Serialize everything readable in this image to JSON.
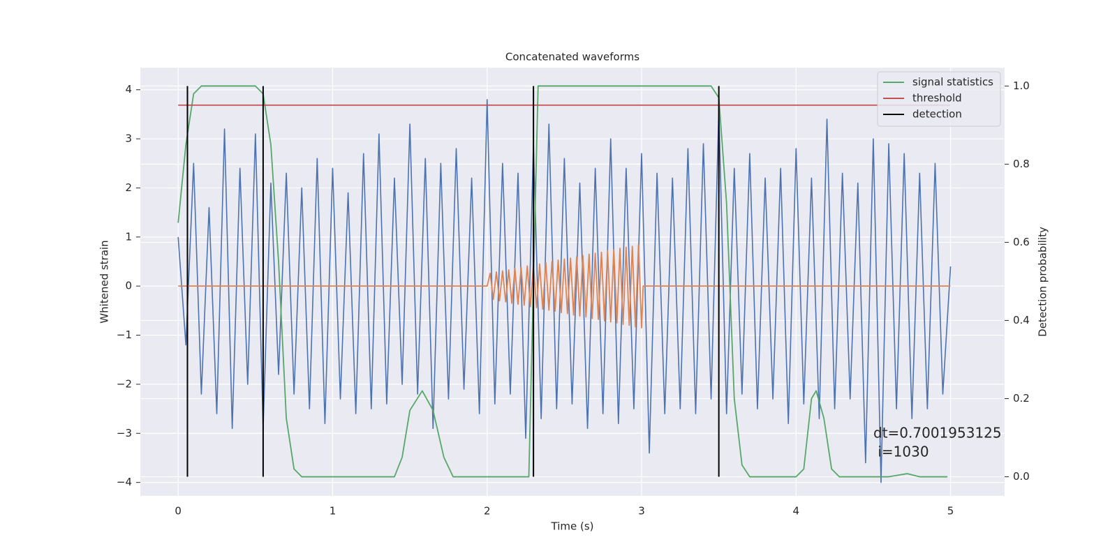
{
  "chart_data": {
    "type": "line",
    "title": "Concatenated waveforms",
    "x_label": "Time (s)",
    "y_label": "Whitened strain",
    "y2_label": "Detection probability",
    "xlim": [
      -0.245,
      5.35
    ],
    "ylim": [
      -4.275,
      4.45
    ],
    "y2lim": [
      -0.049,
      1.047
    ],
    "xticks": [
      0,
      1,
      2,
      3,
      4,
      5
    ],
    "yticks": [
      {
        "value": -4,
        "label": "−4"
      },
      {
        "value": -3,
        "label": "−3"
      },
      {
        "value": -2,
        "label": "−2"
      },
      {
        "value": -1,
        "label": "−1"
      },
      0,
      1,
      2,
      3,
      4
    ],
    "y2ticks": [
      {
        "value": 0,
        "label": "0.0"
      },
      0.2,
      0.4,
      0.6,
      0.8,
      {
        "value": 1,
        "label": "1.0"
      }
    ],
    "grid": true,
    "legend": "upper right",
    "annotation": [
      "dt=0.7001953125",
      " i=1030"
    ],
    "series": [
      {
        "color": "#4c72b0",
        "axis": "y",
        "style": "line",
        "x": [
          0,
          0.05,
          0.1,
          0.15,
          0.2,
          0.25,
          0.3,
          0.35,
          0.4,
          0.45,
          0.5,
          0.55,
          0.6,
          0.65,
          0.7,
          0.75,
          0.8,
          0.85,
          0.9,
          0.95,
          1,
          1.05,
          1.1,
          1.15,
          1.2,
          1.25,
          1.3,
          1.35,
          1.4,
          1.45,
          1.5,
          1.55,
          1.6,
          1.65,
          1.7,
          1.75,
          1.8,
          1.85,
          1.9,
          1.95,
          2,
          2.05,
          2.1,
          2.15,
          2.2,
          2.25,
          2.3,
          2.35,
          2.4,
          2.45,
          2.5,
          2.55,
          2.6,
          2.65,
          2.7,
          2.75,
          2.8,
          2.85,
          2.9,
          2.95,
          3,
          3.05,
          3.1,
          3.15,
          3.2,
          3.25,
          3.3,
          3.35,
          3.4,
          3.45,
          3.5,
          3.55,
          3.6,
          3.65,
          3.7,
          3.75,
          3.8,
          3.85,
          3.9,
          3.95,
          4,
          4.05,
          4.1,
          4.15,
          4.2,
          4.25,
          4.3,
          4.35,
          4.4,
          4.45,
          4.5,
          4.55,
          4.6,
          4.65,
          4.7,
          4.75,
          4.8,
          4.85,
          4.9,
          4.95,
          5
        ],
        "values": [
          1.0,
          -1.2,
          2.5,
          -2.2,
          1.6,
          -2.6,
          3.2,
          -2.9,
          2.4,
          -2.0,
          3.1,
          -2.9,
          2.1,
          -1.8,
          2.3,
          -2.2,
          2.0,
          -2.5,
          2.6,
          -2.8,
          2.4,
          -2.3,
          1.9,
          -2.6,
          2.7,
          -2.5,
          3.1,
          -2.4,
          2.2,
          -2.0,
          3.3,
          -2.2,
          2.6,
          -2.9,
          2.5,
          -2.3,
          2.8,
          -2.1,
          2.2,
          -2.6,
          3.8,
          -2.4,
          2.5,
          -2.2,
          2.3,
          -3.1,
          2.9,
          -2.7,
          3.3,
          -2.5,
          2.6,
          -2.4,
          2.1,
          -2.9,
          2.4,
          -2.6,
          3.0,
          -2.8,
          2.4,
          -2.5,
          2.7,
          -3.4,
          2.3,
          -2.6,
          2.2,
          -2.5,
          2.8,
          -2.6,
          2.9,
          -2.3,
          3.6,
          -2.6,
          2.4,
          -2.2,
          2.7,
          -2.5,
          2.2,
          -2.3,
          2.4,
          -2.8,
          2.8,
          -2.4,
          2.2,
          -2.7,
          3.4,
          -2.5,
          2.3,
          -2.3,
          2.1,
          -3.6,
          3.0,
          -4.0,
          2.9,
          -2.5,
          2.7,
          -2.7,
          2.3,
          -2.5,
          2.5,
          -2.2,
          0.4
        ]
      },
      {
        "color": "#dd8452",
        "axis": "y",
        "style": "line",
        "x": [
          0,
          2,
          2.02,
          2.04,
          2.06,
          2.08,
          2.1,
          2.12,
          2.14,
          2.16,
          2.18,
          2.2,
          2.22,
          2.24,
          2.26,
          2.28,
          2.3,
          2.32,
          2.34,
          2.36,
          2.38,
          2.4,
          2.42,
          2.44,
          2.46,
          2.48,
          2.5,
          2.52,
          2.54,
          2.56,
          2.58,
          2.6,
          2.62,
          2.64,
          2.66,
          2.68,
          2.7,
          2.72,
          2.74,
          2.76,
          2.78,
          2.8,
          2.82,
          2.84,
          2.86,
          2.88,
          2.9,
          2.92,
          2.94,
          2.96,
          2.98,
          3,
          3.01,
          5
        ],
        "values": [
          0,
          0,
          0.26,
          -0.27,
          0.29,
          -0.3,
          0.31,
          -0.32,
          0.33,
          -0.35,
          0.36,
          -0.37,
          0.38,
          -0.39,
          0.41,
          -0.42,
          0.43,
          -0.44,
          0.45,
          -0.47,
          0.48,
          -0.49,
          0.5,
          -0.51,
          0.53,
          -0.54,
          0.55,
          -0.56,
          0.57,
          -0.59,
          0.6,
          -0.61,
          0.62,
          -0.63,
          0.65,
          -0.66,
          0.67,
          -0.68,
          0.69,
          -0.71,
          0.72,
          -0.73,
          0.74,
          -0.75,
          0.77,
          -0.78,
          0.79,
          -0.8,
          0.81,
          -0.83,
          0.84,
          -0.85,
          0,
          0
        ]
      },
      {
        "name": "signal statistics",
        "color": "#55a868",
        "axis": "y2",
        "style": "line",
        "x": [
          0,
          0.05,
          0.1,
          0.15,
          0.5,
          0.55,
          0.6,
          0.65,
          0.7,
          0.75,
          0.8,
          1.4,
          1.45,
          1.5,
          1.58,
          1.65,
          1.72,
          1.78,
          2.27,
          2.3,
          2.33,
          3.45,
          3.5,
          3.55,
          3.6,
          3.65,
          3.7,
          4.0,
          4.05,
          4.1,
          4.13,
          4.18,
          4.23,
          4.28,
          4.6,
          4.72,
          4.8,
          4.98
        ],
        "values": [
          0.65,
          0.85,
          0.98,
          1.0,
          1.0,
          0.98,
          0.85,
          0.55,
          0.15,
          0.02,
          0.0,
          0.0,
          0.05,
          0.17,
          0.22,
          0.17,
          0.05,
          0.0,
          0.0,
          0.5,
          1.0,
          1.0,
          0.97,
          0.7,
          0.2,
          0.03,
          0.0,
          0.0,
          0.02,
          0.2,
          0.22,
          0.15,
          0.02,
          0.0,
          0.0,
          0.008,
          0.0,
          0.0
        ]
      },
      {
        "name": "threshold",
        "color": "#c44e52",
        "axis": "y2",
        "style": "line",
        "x": [
          0,
          5
        ],
        "values": [
          0.951,
          0.951
        ]
      },
      {
        "name": "detection",
        "color": "#000000",
        "axis": "y2",
        "style": "vline",
        "x": [
          0.06,
          0.55,
          2.3,
          3.5
        ],
        "values": [
          1,
          1,
          1,
          1
        ]
      }
    ]
  }
}
